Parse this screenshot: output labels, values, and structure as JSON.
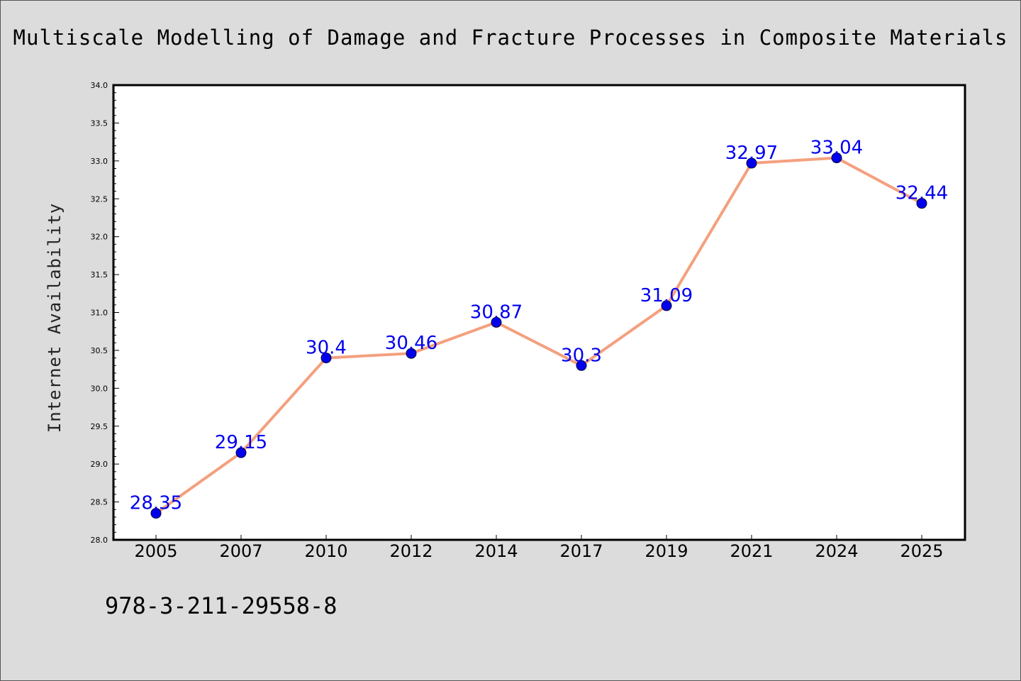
{
  "title": "Multiscale Modelling of Damage and Fracture Processes in Composite Materials",
  "footer_text": "978-3-211-29558-8",
  "colors": {
    "background": "#dcdcdc",
    "plot_background": "#ffffff",
    "line": "#f4a07e",
    "marker_fill": "#0000ee",
    "data_label": "#0000ee"
  },
  "chart_data": {
    "type": "line",
    "title": "Multiscale Modelling of Damage and Fracture Processes in Composite Materials",
    "xlabel": "",
    "ylabel": "Internet Availability",
    "categories": [
      "2005",
      "2007",
      "2010",
      "2012",
      "2014",
      "2017",
      "2019",
      "2021",
      "2024",
      "2025"
    ],
    "series": [
      {
        "values": [
          28.35,
          29.15,
          30.4,
          30.46,
          30.87,
          30.3,
          31.09,
          32.97,
          33.04,
          32.44
        ],
        "labels": [
          "28.35",
          "29.15",
          "30.4",
          "30.46",
          "30.87",
          "30.3",
          "31.09",
          "32.97",
          "33.04",
          "32.44"
        ]
      }
    ],
    "ylim": [
      28.0,
      34.0
    ],
    "yticks": [
      "28.0",
      "28.5",
      "29.0",
      "29.5",
      "30.0",
      "30.5",
      "31.0",
      "31.5",
      "32.0",
      "32.5",
      "33.0",
      "33.5",
      "34.0"
    ],
    "grid": false,
    "legend": "none"
  }
}
